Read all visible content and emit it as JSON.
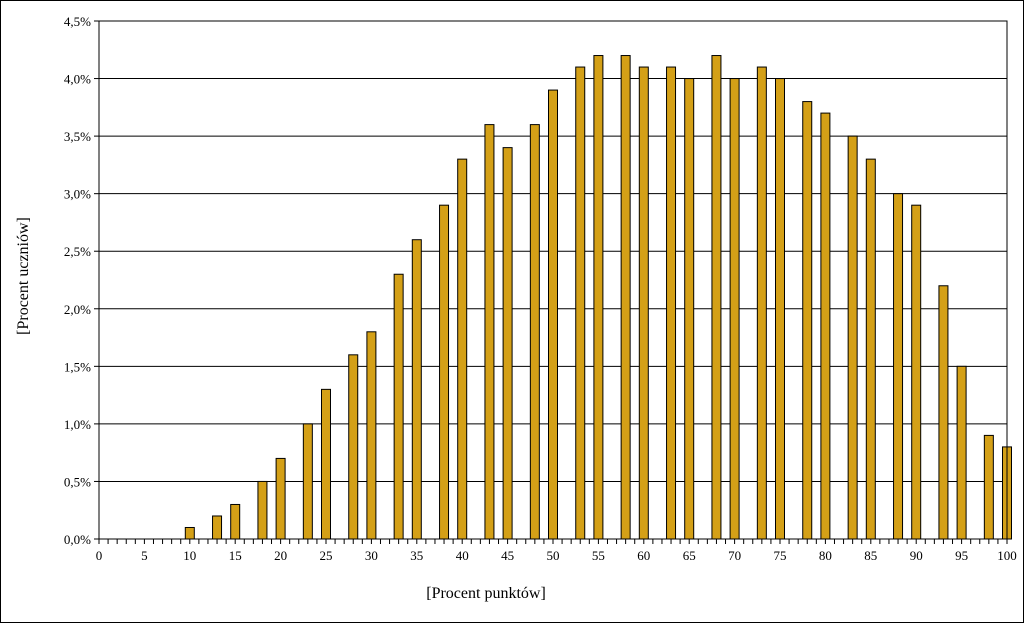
{
  "chart_data": {
    "type": "bar",
    "title": "",
    "xlabel": "[Procent punktów]",
    "ylabel": "[Procent uczniów]",
    "x": [
      0,
      3,
      5,
      8,
      10,
      13,
      15,
      18,
      20,
      23,
      25,
      28,
      30,
      33,
      35,
      38,
      40,
      43,
      45,
      48,
      50,
      53,
      55,
      58,
      60,
      63,
      65,
      68,
      70,
      73,
      75,
      78,
      80,
      83,
      85,
      88,
      90,
      93,
      95,
      98,
      100
    ],
    "values": [
      0,
      0,
      0,
      0,
      0.1,
      0.2,
      0.3,
      0.5,
      0.7,
      1.0,
      1.3,
      1.6,
      1.8,
      2.3,
      2.6,
      2.9,
      3.3,
      3.6,
      3.4,
      3.6,
      3.9,
      4.1,
      4.2,
      4.2,
      4.1,
      4.1,
      4.0,
      4.2,
      4.0,
      4.1,
      4.0,
      3.8,
      3.7,
      3.5,
      3.3,
      3.0,
      2.9,
      2.2,
      1.5,
      0.9,
      0.8
    ],
    "xlim": [
      0,
      100
    ],
    "ylim": [
      0,
      4.5
    ],
    "x_tick_labels": [
      "0",
      "5",
      "10",
      "15",
      "20",
      "25",
      "30",
      "35",
      "40",
      "45",
      "50",
      "55",
      "60",
      "65",
      "70",
      "75",
      "80",
      "85",
      "90",
      "95",
      "100"
    ],
    "y_tick_labels": [
      "0,0%",
      "0,5%",
      "1,0%",
      "1,5%",
      "2,0%",
      "2,5%",
      "3,0%",
      "3,5%",
      "4,0%",
      "4,5%"
    ],
    "grid": true,
    "bar_color": "#D4A017",
    "bar_edge_color": "#000000",
    "grid_color": "#000000"
  }
}
